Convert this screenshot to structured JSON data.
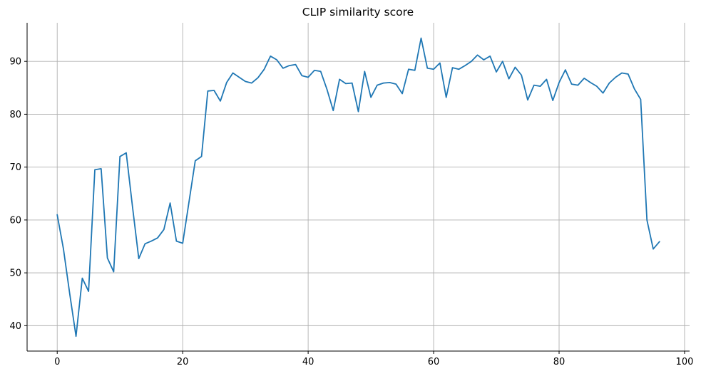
{
  "figure": {
    "background_color": "#ffffff"
  },
  "chart_data": {
    "type": "line",
    "title": "CLIP similarity score",
    "xlabel": "",
    "ylabel": "",
    "legend": null,
    "grid": true,
    "grid_color": "#b0b0b0",
    "line_color": "#1f77b4",
    "spine_color": "#000000",
    "xlim": [
      -4.8,
      100.8
    ],
    "ylim": [
      35.2,
      97.3
    ],
    "xticks": [
      0,
      20,
      40,
      60,
      80,
      100
    ],
    "yticks": [
      40,
      50,
      60,
      70,
      80,
      90
    ],
    "x": [
      0,
      1,
      2,
      3,
      4,
      5,
      6,
      7,
      8,
      9,
      10,
      11,
      12,
      13,
      14,
      15,
      16,
      17,
      18,
      19,
      20,
      21,
      22,
      23,
      24,
      25,
      26,
      27,
      28,
      29,
      30,
      31,
      32,
      33,
      34,
      35,
      36,
      37,
      38,
      39,
      40,
      41,
      42,
      43,
      44,
      45,
      46,
      47,
      48,
      49,
      50,
      51,
      52,
      53,
      54,
      55,
      56,
      57,
      58,
      59,
      60,
      61,
      62,
      63,
      64,
      65,
      66,
      67,
      68,
      69,
      70,
      71,
      72,
      73,
      74,
      75,
      76,
      77,
      78,
      79,
      80,
      81,
      82,
      83,
      84,
      85,
      86,
      87,
      88,
      89,
      90,
      91,
      92,
      93,
      94,
      95,
      96
    ],
    "values": [
      61.0,
      54.5,
      46.0,
      38.0,
      49.0,
      46.5,
      69.5,
      69.7,
      52.8,
      50.2,
      72.0,
      72.7,
      62.5,
      52.7,
      55.5,
      56.0,
      56.6,
      58.2,
      63.2,
      56.0,
      55.6,
      63.4,
      71.2,
      72.0,
      84.4,
      84.5,
      82.5,
      86.0,
      87.8,
      87.0,
      86.2,
      85.9,
      86.9,
      88.5,
      91.0,
      90.3,
      88.7,
      89.2,
      89.4,
      87.3,
      87.0,
      88.3,
      88.1,
      84.7,
      80.7,
      86.6,
      85.8,
      85.9,
      80.5,
      88.1,
      83.2,
      85.5,
      85.9,
      86.0,
      85.7,
      83.9,
      88.5,
      88.3,
      94.4,
      88.7,
      88.5,
      89.7,
      83.2,
      88.8,
      88.5,
      89.2,
      90.0,
      91.2,
      90.3,
      91.0,
      88.0,
      90.0,
      86.7,
      88.9,
      87.4,
      82.7,
      85.5,
      85.3,
      86.6,
      82.6,
      86.0,
      88.4,
      85.7,
      85.5,
      86.8,
      86.0,
      85.3,
      84.0,
      85.9,
      87.0,
      87.8,
      87.6,
      84.8,
      82.8,
      60.0,
      54.5,
      55.9
    ]
  }
}
